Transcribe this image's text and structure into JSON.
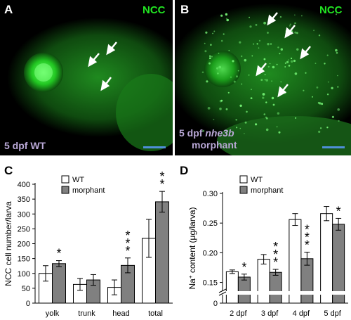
{
  "panels": {
    "A": {
      "letter": "A",
      "stain": "NCC",
      "caption_line1": "5 dpf WT",
      "caption_line2": ""
    },
    "B": {
      "letter": "B",
      "stain": "NCC",
      "caption_prefix": "5 dpf ",
      "caption_italic": "nhe3b",
      "caption_line2": "morphant"
    },
    "C": {
      "letter": "C"
    },
    "D": {
      "letter": "D"
    }
  },
  "colors": {
    "wt": "#ffffff",
    "morphant": "#808080",
    "fluor": "#22e622",
    "caption": "#b9a8d6",
    "scalebar": "#4f8fd8"
  },
  "chart_data": [
    {
      "type": "bar",
      "ylabel": "NCC cell number/larva",
      "categories": [
        "yolk",
        "trunk",
        "head",
        "total"
      ],
      "ylim": [
        0,
        400
      ],
      "yticks": [
        "0",
        "50",
        "100",
        "150",
        "200",
        "250",
        "300",
        "350",
        "400"
      ],
      "legend": {
        "placement": "top-left",
        "entries": [
          "WT",
          "morphant"
        ]
      },
      "series": [
        {
          "name": "WT",
          "values": [
            100,
            63,
            53,
            218
          ],
          "errors": [
            26,
            20,
            25,
            64
          ]
        },
        {
          "name": "morphant",
          "values": [
            133,
            78,
            127,
            341
          ],
          "errors": [
            10,
            18,
            25,
            35
          ]
        }
      ],
      "significance": [
        "*",
        "",
        "* * *",
        "* *"
      ]
    },
    {
      "type": "bar",
      "ylabel_prefix": "Na",
      "ylabel_superscript": "+",
      "ylabel_suffix": " content (μg/larva)",
      "categories": [
        "2 dpf",
        "3 dpf",
        "4 dpf",
        "5 dpf"
      ],
      "ylim": [
        0,
        0.3
      ],
      "axis_break": true,
      "yticks": [
        "0",
        "0.15",
        "0.20",
        "0.25",
        "0.30"
      ],
      "legend": {
        "placement": "top-left",
        "entries": [
          "WT",
          "morphant"
        ]
      },
      "series": [
        {
          "name": "WT",
          "values": [
            0.168,
            0.189,
            0.256,
            0.266
          ],
          "errors": [
            0.003,
            0.008,
            0.01,
            0.012
          ]
        },
        {
          "name": "morphant",
          "values": [
            0.159,
            0.167,
            0.19,
            0.248
          ],
          "errors": [
            0.005,
            0.005,
            0.011,
            0.01
          ]
        }
      ],
      "significance": [
        "*",
        "* * *",
        "* * *",
        "*"
      ]
    }
  ]
}
